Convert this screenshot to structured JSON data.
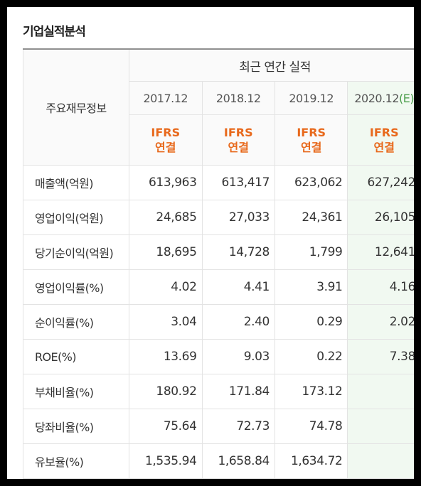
{
  "title": "기업실적분석",
  "header": {
    "row_label": "주요재무정보",
    "group": "최근 연간 실적",
    "years": [
      "2017.12",
      "2018.12",
      "2019.12",
      "2020.12"
    ],
    "estimate_suffix": "(E)",
    "ifrs": {
      "line1": "IFRS",
      "line2": "연결"
    }
  },
  "rows": [
    {
      "label": "매출액(억원)",
      "values": [
        "613,963",
        "613,417",
        "623,062",
        "627,242"
      ]
    },
    {
      "label": "영업이익(억원)",
      "values": [
        "24,685",
        "27,033",
        "24,361",
        "26,105"
      ]
    },
    {
      "label": "당기순이익(억원)",
      "values": [
        "18,695",
        "14,728",
        "1,799",
        "12,641"
      ]
    },
    {
      "label": "영업이익률(%)",
      "values": [
        "4.02",
        "4.41",
        "3.91",
        "4.16"
      ]
    },
    {
      "label": "순이익률(%)",
      "values": [
        "3.04",
        "2.40",
        "0.29",
        "2.02"
      ]
    },
    {
      "label": "ROE(%)",
      "values": [
        "13.69",
        "9.03",
        "0.22",
        "7.38"
      ]
    },
    {
      "label": "부채비율(%)",
      "values": [
        "180.92",
        "171.84",
        "173.12",
        ""
      ]
    },
    {
      "label": "당좌비율(%)",
      "values": [
        "75.64",
        "72.73",
        "74.78",
        ""
      ]
    },
    {
      "label": "유보율(%)",
      "values": [
        "1,535.94",
        "1,658.84",
        "1,634.72",
        ""
      ]
    }
  ],
  "colors": {
    "ifrs": "#e8691c",
    "estimate": "#4a9d4a",
    "estimate_bg": "#f1f9f1"
  }
}
